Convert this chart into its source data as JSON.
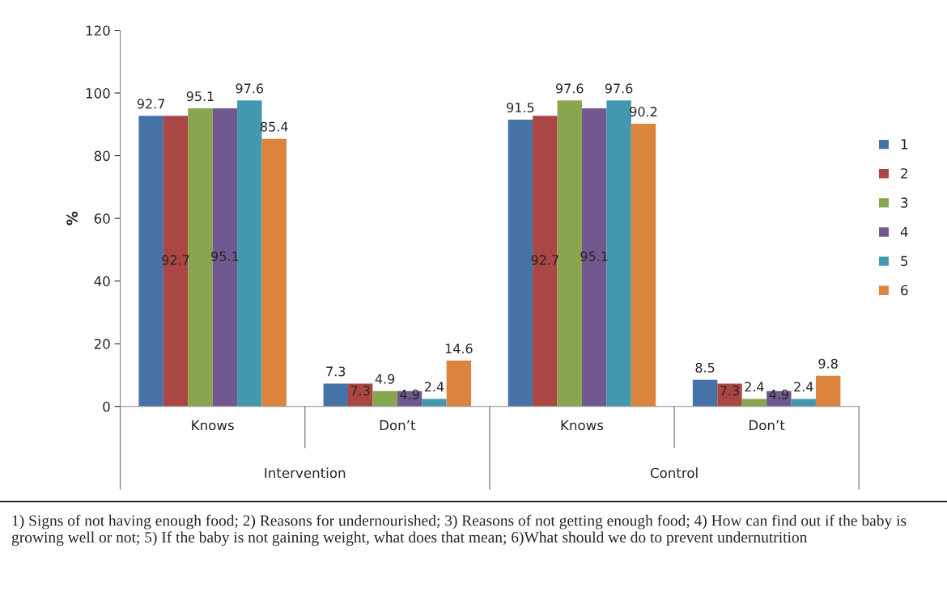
{
  "chart_data": {
    "type": "bar",
    "categories": [
      "Knows",
      "Don’t",
      "Knows",
      "Don’t"
    ],
    "series": [
      {
        "name": "1",
        "color": "#4572a7",
        "values": [
          92.7,
          7.3,
          91.5,
          8.5
        ]
      },
      {
        "name": "2",
        "color": "#aa4643",
        "values": [
          92.7,
          7.3,
          92.7,
          7.3
        ]
      },
      {
        "name": "3",
        "color": "#89a54e",
        "values": [
          95.1,
          4.9,
          97.6,
          2.4
        ]
      },
      {
        "name": "4",
        "color": "#71588f",
        "values": [
          95.1,
          4.9,
          95.1,
          4.9
        ]
      },
      {
        "name": "5",
        "color": "#4198af",
        "values": [
          97.6,
          2.4,
          97.6,
          2.4
        ]
      },
      {
        "name": "6",
        "color": "#db843d",
        "values": [
          85.4,
          14.6,
          90.2,
          9.8
        ]
      }
    ],
    "ylabel": "%",
    "ylim": [
      0,
      120
    ],
    "yticks": [
      0,
      20,
      40,
      60,
      80,
      100,
      120
    ],
    "grid": false,
    "legend": "right",
    "data_labels": true,
    "annotations": [
      "Intervention",
      "Control",
      "1) Signs of not having enough food; 2) Reasons for undernourished; 3) Reasons of not getting enough food; 4) How can find out if the baby is growing well or not; 5) If the baby is not gaining weight, what does that mean; 6)What should we do to prevent undernutrition"
    ]
  }
}
